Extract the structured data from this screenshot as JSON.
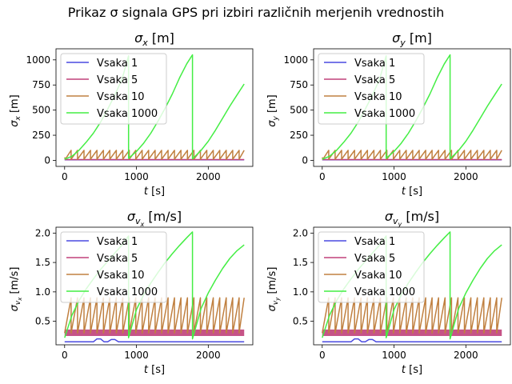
{
  "figure": {
    "suptitle": "Prikaz σ signala GPS pri izbiri različnih merjenih vrednostih"
  },
  "chart_data": [
    {
      "type": "line",
      "title": "σx [m]",
      "title_parts": {
        "sym": "σ",
        "sub": "x",
        "unit": " [m]"
      },
      "xlabel": "t [s]",
      "xlabel_parts": {
        "var": "t",
        "unit": " [s]"
      },
      "ylabel": "σx [m]",
      "ylabel_parts": {
        "sym": "σ",
        "sub": "x",
        "unit": " [m]"
      },
      "xlim": [
        -120,
        2620
      ],
      "ylim": [
        -60,
        1110
      ],
      "xticks": [
        0,
        1000,
        2000
      ],
      "yticks": [
        0,
        250,
        500,
        750,
        1000
      ],
      "legend_loc": "upper-left",
      "grid": false,
      "series": [
        {
          "name": "Vsaka 1",
          "color": "#4a4ae0",
          "x": [
            0,
            2500
          ],
          "y": [
            5,
            5
          ]
        },
        {
          "name": "Vsaka 5",
          "color": "#c0407a",
          "x": [
            0,
            2500
          ],
          "y": [
            8,
            8
          ]
        },
        {
          "name": "Vsaka 10",
          "color": "#c08040",
          "x": [
            0,
            10,
            90,
            90,
            180,
            180,
            270,
            270,
            360,
            360,
            450,
            450,
            540,
            540,
            630,
            630,
            720,
            720,
            810,
            810,
            900,
            900,
            990,
            990,
            1080,
            1080,
            1170,
            1170,
            1260,
            1260,
            1350,
            1350,
            1440,
            1440,
            1530,
            1530,
            1620,
            1620,
            1710,
            1710,
            1800,
            1800,
            1890,
            1890,
            1980,
            1980,
            2070,
            2070,
            2160,
            2160,
            2250,
            2250,
            2340,
            2340,
            2430,
            2430,
            2500
          ],
          "y": [
            30,
            12,
            100,
            12,
            100,
            12,
            100,
            12,
            100,
            12,
            100,
            12,
            100,
            12,
            100,
            12,
            100,
            12,
            100,
            12,
            100,
            12,
            100,
            12,
            100,
            12,
            100,
            12,
            100,
            12,
            100,
            12,
            100,
            12,
            100,
            12,
            100,
            12,
            100,
            12,
            100,
            12,
            100,
            12,
            100,
            12,
            100,
            12,
            100,
            12,
            100,
            12,
            100,
            12,
            100,
            12,
            100
          ]
        },
        {
          "name": "Vsaka 1000",
          "color": "#44ee44",
          "x": [
            0,
            100,
            200,
            300,
            400,
            500,
            600,
            700,
            800,
            890,
            890,
            1000,
            1100,
            1200,
            1300,
            1400,
            1500,
            1600,
            1700,
            1780,
            1780,
            1900,
            2000,
            2100,
            2200,
            2300,
            2400,
            2500
          ],
          "y": [
            12,
            40,
            100,
            180,
            270,
            380,
            510,
            650,
            810,
            1040,
            20,
            90,
            170,
            270,
            390,
            520,
            660,
            820,
            960,
            1050,
            15,
            100,
            190,
            300,
            420,
            540,
            650,
            760
          ]
        }
      ]
    },
    {
      "type": "line",
      "title": "σy [m]",
      "title_parts": {
        "sym": "σ",
        "sub": "y",
        "unit": " [m]"
      },
      "xlabel": "t [s]",
      "xlabel_parts": {
        "var": "t",
        "unit": " [s]"
      },
      "ylabel": "σy [m]",
      "ylabel_parts": {
        "sym": "σ",
        "sub": "y",
        "unit": " [m]"
      },
      "xlim": [
        -120,
        2620
      ],
      "ylim": [
        -60,
        1110
      ],
      "xticks": [
        0,
        1000,
        2000
      ],
      "yticks": [
        0,
        250,
        500,
        750,
        1000
      ],
      "legend_loc": "upper-left",
      "grid": false,
      "series": [
        {
          "name": "Vsaka 1",
          "color": "#4a4ae0",
          "x": [
            0,
            2500
          ],
          "y": [
            5,
            5
          ]
        },
        {
          "name": "Vsaka 5",
          "color": "#c0407a",
          "x": [
            0,
            2500
          ],
          "y": [
            8,
            8
          ]
        },
        {
          "name": "Vsaka 10",
          "color": "#c08040",
          "x": [
            0,
            10,
            90,
            90,
            180,
            180,
            270,
            270,
            360,
            360,
            450,
            450,
            540,
            540,
            630,
            630,
            720,
            720,
            810,
            810,
            900,
            900,
            990,
            990,
            1080,
            1080,
            1170,
            1170,
            1260,
            1260,
            1350,
            1350,
            1440,
            1440,
            1530,
            1530,
            1620,
            1620,
            1710,
            1710,
            1800,
            1800,
            1890,
            1890,
            1980,
            1980,
            2070,
            2070,
            2160,
            2160,
            2250,
            2250,
            2340,
            2340,
            2430,
            2430,
            2500
          ],
          "y": [
            30,
            12,
            100,
            12,
            100,
            12,
            100,
            12,
            100,
            12,
            100,
            12,
            100,
            12,
            100,
            12,
            100,
            12,
            100,
            12,
            100,
            12,
            100,
            12,
            100,
            12,
            100,
            12,
            100,
            12,
            100,
            12,
            100,
            12,
            100,
            12,
            100,
            12,
            100,
            12,
            100,
            12,
            100,
            12,
            100,
            12,
            100,
            12,
            100,
            12,
            100,
            12,
            100,
            12,
            100,
            12,
            100
          ]
        },
        {
          "name": "Vsaka 1000",
          "color": "#44ee44",
          "x": [
            0,
            100,
            200,
            300,
            400,
            500,
            600,
            700,
            800,
            890,
            890,
            1000,
            1100,
            1200,
            1300,
            1400,
            1500,
            1600,
            1700,
            1780,
            1780,
            1900,
            2000,
            2100,
            2200,
            2300,
            2400,
            2500
          ],
          "y": [
            12,
            40,
            100,
            180,
            270,
            380,
            510,
            650,
            810,
            1040,
            20,
            90,
            170,
            270,
            390,
            520,
            660,
            820,
            960,
            1050,
            15,
            100,
            190,
            300,
            420,
            540,
            650,
            760
          ]
        }
      ]
    },
    {
      "type": "line",
      "title": "σvx [m/s]",
      "title_parts": {
        "sym": "σ",
        "sub": "v",
        "subsub": "x",
        "unit": " [m/s]"
      },
      "xlabel": "t [s]",
      "xlabel_parts": {
        "var": "t",
        "unit": " [s]"
      },
      "ylabel": "σvx [m/s]",
      "ylabel_parts": {
        "sym": "σ",
        "sub": "v",
        "subsub": "x",
        "unit": " [m/s]"
      },
      "xlim": [
        -120,
        2620
      ],
      "ylim": [
        0.1,
        2.1
      ],
      "xticks": [
        0,
        1000,
        2000
      ],
      "yticks": [
        0.5,
        1.0,
        1.5,
        2.0
      ],
      "ytick_labels": [
        "0.5",
        "1.0",
        "1.5",
        "2.0"
      ],
      "legend_loc": "upper-left",
      "grid": false,
      "series": [
        {
          "name": "Vsaka 1",
          "color": "#4a4ae0",
          "x": [
            0,
            400,
            450,
            500,
            550,
            600,
            650,
            700,
            750,
            800,
            2500
          ],
          "y": [
            0.15,
            0.15,
            0.2,
            0.2,
            0.15,
            0.15,
            0.19,
            0.19,
            0.15,
            0.15,
            0.15
          ]
        },
        {
          "name": "Vsaka 5",
          "color": "#c0407a",
          "band": true,
          "x": [
            0,
            2500
          ],
          "y": [
            0.3,
            0.3
          ],
          "band_low": 0.25,
          "band_high": 0.36
        },
        {
          "name": "Vsaka 10",
          "color": "#c08040",
          "x": [
            0,
            90,
            90,
            180,
            180,
            270,
            270,
            360,
            360,
            450,
            450,
            540,
            540,
            630,
            630,
            720,
            720,
            810,
            810,
            900,
            900,
            990,
            990,
            1080,
            1080,
            1170,
            1170,
            1260,
            1260,
            1350,
            1350,
            1440,
            1440,
            1530,
            1530,
            1620,
            1620,
            1710,
            1710,
            1800,
            1800,
            1890,
            1890,
            1980,
            1980,
            2070,
            2070,
            2160,
            2160,
            2250,
            2250,
            2340,
            2340,
            2430,
            2430,
            2500
          ],
          "y": [
            0.3,
            0.9,
            0.3,
            0.9,
            0.3,
            0.9,
            0.3,
            0.9,
            0.3,
            0.9,
            0.3,
            0.9,
            0.3,
            0.9,
            0.3,
            0.9,
            0.3,
            0.9,
            0.3,
            0.9,
            0.3,
            0.9,
            0.3,
            0.9,
            0.3,
            0.9,
            0.3,
            0.9,
            0.3,
            0.9,
            0.3,
            0.9,
            0.3,
            0.9,
            0.3,
            0.9,
            0.3,
            0.9,
            0.3,
            0.9,
            0.3,
            0.9,
            0.3,
            0.9,
            0.3,
            0.9,
            0.3,
            0.9,
            0.3,
            0.9,
            0.3,
            0.9,
            0.3,
            0.9,
            0.3,
            0.9
          ]
        },
        {
          "name": "Vsaka 1000",
          "color": "#44ee44",
          "x": [
            0,
            100,
            200,
            300,
            400,
            500,
            600,
            700,
            800,
            890,
            890,
            1000,
            1100,
            1200,
            1300,
            1400,
            1500,
            1600,
            1700,
            1780,
            1780,
            1900,
            2000,
            2100,
            2200,
            2300,
            2400,
            2500
          ],
          "y": [
            0.22,
            0.6,
            0.85,
            1.05,
            1.22,
            1.38,
            1.52,
            1.66,
            1.8,
            1.95,
            0.22,
            0.7,
            0.95,
            1.15,
            1.33,
            1.5,
            1.65,
            1.79,
            1.92,
            2.02,
            0.2,
            0.72,
            0.98,
            1.2,
            1.4,
            1.57,
            1.7,
            1.8
          ]
        }
      ]
    },
    {
      "type": "line",
      "title": "σvy [m/s]",
      "title_parts": {
        "sym": "σ",
        "sub": "v",
        "subsub": "y",
        "unit": " [m/s]"
      },
      "xlabel": "t [s]",
      "xlabel_parts": {
        "var": "t",
        "unit": " [s]"
      },
      "ylabel": "σvy [m/s]",
      "ylabel_parts": {
        "sym": "σ",
        "sub": "v",
        "subsub": "y",
        "unit": " [m/s]"
      },
      "xlim": [
        -120,
        2620
      ],
      "ylim": [
        0.1,
        2.1
      ],
      "xticks": [
        0,
        1000,
        2000
      ],
      "yticks": [
        0.5,
        1.0,
        1.5,
        2.0
      ],
      "ytick_labels": [
        "0.5",
        "1.0",
        "1.5",
        "2.0"
      ],
      "legend_loc": "upper-left",
      "grid": false,
      "series": [
        {
          "name": "Vsaka 1",
          "color": "#4a4ae0",
          "x": [
            0,
            400,
            450,
            500,
            550,
            600,
            650,
            700,
            750,
            800,
            2500
          ],
          "y": [
            0.15,
            0.15,
            0.2,
            0.2,
            0.15,
            0.15,
            0.19,
            0.19,
            0.15,
            0.15,
            0.15
          ]
        },
        {
          "name": "Vsaka 5",
          "color": "#c0407a",
          "band": true,
          "x": [
            0,
            2500
          ],
          "y": [
            0.3,
            0.3
          ],
          "band_low": 0.25,
          "band_high": 0.36
        },
        {
          "name": "Vsaka 10",
          "color": "#c08040",
          "x": [
            0,
            90,
            90,
            180,
            180,
            270,
            270,
            360,
            360,
            450,
            450,
            540,
            540,
            630,
            630,
            720,
            720,
            810,
            810,
            900,
            900,
            990,
            990,
            1080,
            1080,
            1170,
            1170,
            1260,
            1260,
            1350,
            1350,
            1440,
            1440,
            1530,
            1530,
            1620,
            1620,
            1710,
            1710,
            1800,
            1800,
            1890,
            1890,
            1980,
            1980,
            2070,
            2070,
            2160,
            2160,
            2250,
            2250,
            2340,
            2340,
            2430,
            2430,
            2500
          ],
          "y": [
            0.3,
            0.9,
            0.3,
            0.9,
            0.3,
            0.9,
            0.3,
            0.9,
            0.3,
            0.9,
            0.3,
            0.9,
            0.3,
            0.9,
            0.3,
            0.9,
            0.3,
            0.9,
            0.3,
            0.9,
            0.3,
            0.9,
            0.3,
            0.9,
            0.3,
            0.9,
            0.3,
            0.9,
            0.3,
            0.9,
            0.3,
            0.9,
            0.3,
            0.9,
            0.3,
            0.9,
            0.3,
            0.9,
            0.3,
            0.9,
            0.3,
            0.9,
            0.3,
            0.9,
            0.3,
            0.9,
            0.3,
            0.9,
            0.3,
            0.9,
            0.3,
            0.9,
            0.3,
            0.9,
            0.3,
            0.9
          ]
        },
        {
          "name": "Vsaka 1000",
          "color": "#44ee44",
          "x": [
            0,
            100,
            200,
            300,
            400,
            500,
            600,
            700,
            800,
            890,
            890,
            1000,
            1100,
            1200,
            1300,
            1400,
            1500,
            1600,
            1700,
            1780,
            1780,
            1900,
            2000,
            2100,
            2200,
            2300,
            2400,
            2500
          ],
          "y": [
            0.22,
            0.6,
            0.85,
            1.05,
            1.22,
            1.38,
            1.52,
            1.66,
            1.8,
            1.95,
            0.22,
            0.7,
            0.95,
            1.15,
            1.33,
            1.5,
            1.65,
            1.79,
            1.92,
            2.02,
            0.2,
            0.72,
            0.98,
            1.2,
            1.4,
            1.57,
            1.7,
            1.8
          ]
        }
      ]
    }
  ]
}
